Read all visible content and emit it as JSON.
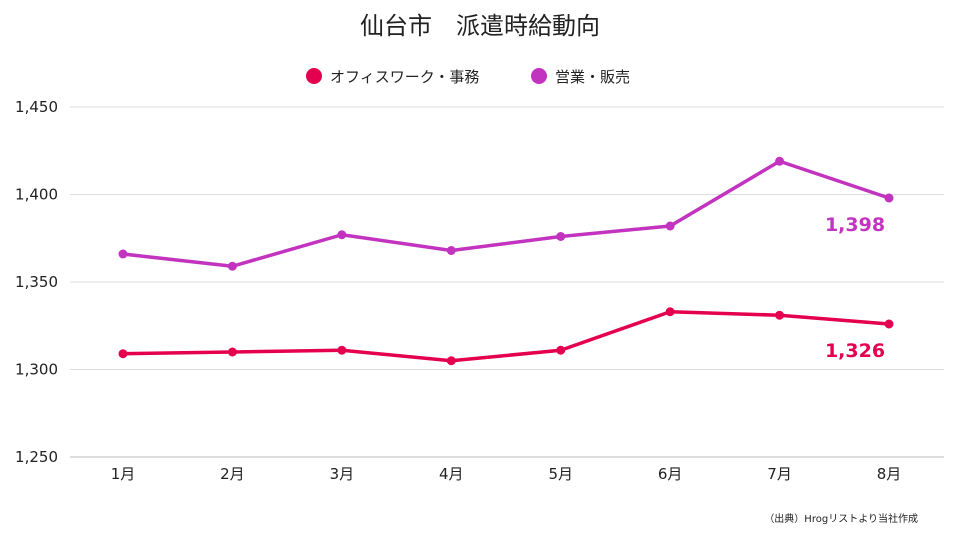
{
  "chart_data": {
    "type": "line",
    "title": "仙台市　派遣時給動向",
    "categories": [
      "1月",
      "2月",
      "3月",
      "4月",
      "5月",
      "6月",
      "7月",
      "8月"
    ],
    "ylim": [
      1250,
      1450
    ],
    "yticks": [
      1250,
      1300,
      1350,
      1400,
      1450
    ],
    "ytick_labels": [
      "1,250",
      "1,300",
      "1,350",
      "1,400",
      "1,450"
    ],
    "grid": true,
    "legend_position": "top-center",
    "series": [
      {
        "name": "オフィスワーク・事務",
        "color": "#E4004F",
        "values": [
          1309,
          1310,
          1311,
          1305,
          1311,
          1333,
          1331,
          1326
        ],
        "end_label": "1,326"
      },
      {
        "name": "営業・販売",
        "color": "#C233C0",
        "values": [
          1366,
          1359,
          1377,
          1368,
          1376,
          1382,
          1419,
          1398
        ],
        "end_label": "1,398"
      }
    ],
    "source": "（出典）Hrogリストより当社作成"
  }
}
